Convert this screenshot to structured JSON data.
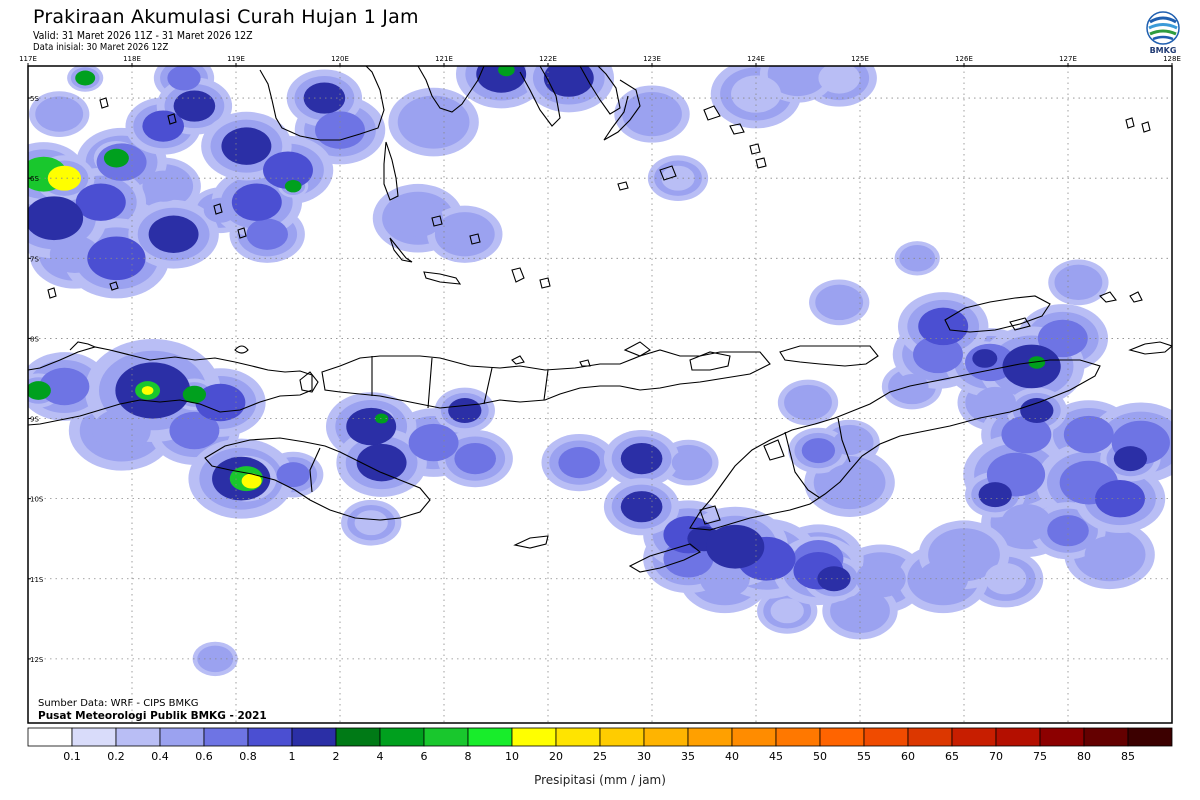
{
  "header": {
    "title": "Prakiraan Akumulasi Curah Hujan 1 Jam",
    "valid": "Valid: 31 Maret 2026 11Z -  31 Maret 2026 12Z",
    "init": "Data inisial: 30 Maret 2026 12Z"
  },
  "logo": {
    "text": "BMKG",
    "icon": "bmkg-logo-icon"
  },
  "map": {
    "lon_range": [
      117,
      128
    ],
    "lat_range": [
      -12.8,
      -4.6
    ],
    "lon_ticks": [
      "117E",
      "118E",
      "119E",
      "120E",
      "121E",
      "122E",
      "123E",
      "124E",
      "125E",
      "126E",
      "127E",
      "128E"
    ],
    "lat_ticks": [
      "5S",
      "6S",
      "7S",
      "8S",
      "9S",
      "10S",
      "11S",
      "12S"
    ],
    "grid": true
  },
  "credits": {
    "source": "Sumber Data: WRF - CIPS BMKG",
    "organization": "Pusat Meteorologi Publik BMKG - 2021"
  },
  "colorbar": {
    "labels": [
      "0.1",
      "0.2",
      "0.4",
      "0.6",
      "0.8",
      "1",
      "2",
      "4",
      "6",
      "8",
      "10",
      "20",
      "25",
      "30",
      "35",
      "40",
      "45",
      "50",
      "55",
      "60",
      "65",
      "70",
      "75",
      "80",
      "85"
    ],
    "colors": [
      "#ffffff",
      "#d9dcfa",
      "#b9bef5",
      "#9ba2f0",
      "#6e74e4",
      "#4b4fd2",
      "#2b2fa6",
      "#007a16",
      "#00a01e",
      "#19c72d",
      "#18ed2b",
      "#ffff00",
      "#ffe400",
      "#ffcc00",
      "#ffb400",
      "#ffa000",
      "#ff8c00",
      "#ff7800",
      "#ff6400",
      "#f04b00",
      "#dc3700",
      "#c81e00",
      "#b40f00",
      "#8c0000",
      "#640000",
      "#3c0000"
    ],
    "xlabel": "Presipitasi (mm / jam)"
  },
  "rain_cells": [
    {
      "lon": 117.15,
      "lat": -5.95,
      "r": 0.28,
      "mm": 6
    },
    {
      "lon": 117.35,
      "lat": -6.0,
      "r": 0.2,
      "mm": 10
    },
    {
      "lon": 117.25,
      "lat": -6.5,
      "r": 0.35,
      "mm": 1
    },
    {
      "lon": 117.7,
      "lat": -6.3,
      "r": 0.3,
      "mm": 0.8
    },
    {
      "lon": 117.9,
      "lat": -5.8,
      "r": 0.3,
      "mm": 0.6
    },
    {
      "lon": 117.85,
      "lat": -5.75,
      "r": 0.15,
      "mm": 4
    },
    {
      "lon": 118.3,
      "lat": -5.35,
      "r": 0.25,
      "mm": 0.8
    },
    {
      "lon": 118.6,
      "lat": -5.1,
      "r": 0.25,
      "mm": 1
    },
    {
      "lon": 118.5,
      "lat": -4.75,
      "r": 0.2,
      "mm": 0.6
    },
    {
      "lon": 117.55,
      "lat": -4.75,
      "r": 0.12,
      "mm": 4
    },
    {
      "lon": 117.85,
      "lat": -7.0,
      "r": 0.35,
      "mm": 0.8
    },
    {
      "lon": 117.45,
      "lat": -6.95,
      "r": 0.3,
      "mm": 0.4
    },
    {
      "lon": 118.4,
      "lat": -6.7,
      "r": 0.3,
      "mm": 1
    },
    {
      "lon": 119.1,
      "lat": -5.6,
      "r": 0.3,
      "mm": 1
    },
    {
      "lon": 119.5,
      "lat": -5.9,
      "r": 0.3,
      "mm": 0.8
    },
    {
      "lon": 119.55,
      "lat": -6.1,
      "r": 0.1,
      "mm": 4
    },
    {
      "lon": 119.3,
      "lat": -6.7,
      "r": 0.25,
      "mm": 0.6
    },
    {
      "lon": 119.85,
      "lat": -5.0,
      "r": 0.25,
      "mm": 1
    },
    {
      "lon": 120.0,
      "lat": -5.4,
      "r": 0.3,
      "mm": 0.6
    },
    {
      "lon": 120.9,
      "lat": -5.3,
      "r": 0.3,
      "mm": 0.4
    },
    {
      "lon": 120.75,
      "lat": -6.5,
      "r": 0.3,
      "mm": 0.4
    },
    {
      "lon": 121.2,
      "lat": -6.7,
      "r": 0.25,
      "mm": 0.4
    },
    {
      "lon": 121.55,
      "lat": -4.7,
      "r": 0.3,
      "mm": 1
    },
    {
      "lon": 121.6,
      "lat": -4.65,
      "r": 0.1,
      "mm": 4
    },
    {
      "lon": 122.2,
      "lat": -4.75,
      "r": 0.3,
      "mm": 1
    },
    {
      "lon": 123.0,
      "lat": -5.2,
      "r": 0.25,
      "mm": 0.4
    },
    {
      "lon": 123.25,
      "lat": -6.0,
      "r": 0.2,
      "mm": 0.2
    },
    {
      "lon": 124.0,
      "lat": -4.95,
      "r": 0.3,
      "mm": 0.2
    },
    {
      "lon": 124.4,
      "lat": -4.7,
      "r": 0.25,
      "mm": 0.4
    },
    {
      "lon": 124.8,
      "lat": -4.75,
      "r": 0.25,
      "mm": 0.2
    },
    {
      "lon": 117.1,
      "lat": -8.65,
      "r": 0.15,
      "mm": 4
    },
    {
      "lon": 117.35,
      "lat": -8.6,
      "r": 0.3,
      "mm": 0.6
    },
    {
      "lon": 118.2,
      "lat": -8.65,
      "r": 0.45,
      "mm": 1
    },
    {
      "lon": 118.15,
      "lat": -8.65,
      "r": 0.15,
      "mm": 6
    },
    {
      "lon": 118.15,
      "lat": -8.65,
      "r": 0.07,
      "mm": 10
    },
    {
      "lon": 118.6,
      "lat": -8.7,
      "r": 0.14,
      "mm": 4
    },
    {
      "lon": 118.85,
      "lat": -8.8,
      "r": 0.3,
      "mm": 0.8
    },
    {
      "lon": 117.9,
      "lat": -9.15,
      "r": 0.35,
      "mm": 0.4
    },
    {
      "lon": 118.6,
      "lat": -9.15,
      "r": 0.3,
      "mm": 0.6
    },
    {
      "lon": 119.05,
      "lat": -9.75,
      "r": 0.35,
      "mm": 1
    },
    {
      "lon": 119.1,
      "lat": -9.75,
      "r": 0.2,
      "mm": 6
    },
    {
      "lon": 119.15,
      "lat": -9.78,
      "r": 0.12,
      "mm": 10
    },
    {
      "lon": 119.55,
      "lat": -9.7,
      "r": 0.2,
      "mm": 0.6
    },
    {
      "lon": 120.3,
      "lat": -9.1,
      "r": 0.3,
      "mm": 1
    },
    {
      "lon": 120.4,
      "lat": -9.0,
      "r": 0.08,
      "mm": 4
    },
    {
      "lon": 120.4,
      "lat": -9.55,
      "r": 0.3,
      "mm": 1
    },
    {
      "lon": 120.9,
      "lat": -9.3,
      "r": 0.3,
      "mm": 0.6
    },
    {
      "lon": 121.2,
      "lat": -8.9,
      "r": 0.2,
      "mm": 1
    },
    {
      "lon": 121.3,
      "lat": -9.5,
      "r": 0.25,
      "mm": 0.6
    },
    {
      "lon": 120.3,
      "lat": -10.3,
      "r": 0.2,
      "mm": 0.2
    },
    {
      "lon": 122.3,
      "lat": -9.55,
      "r": 0.25,
      "mm": 0.6
    },
    {
      "lon": 122.9,
      "lat": -9.5,
      "r": 0.25,
      "mm": 1
    },
    {
      "lon": 123.35,
      "lat": -9.55,
      "r": 0.2,
      "mm": 0.4
    },
    {
      "lon": 122.9,
      "lat": -10.1,
      "r": 0.25,
      "mm": 1
    },
    {
      "lon": 123.35,
      "lat": -10.45,
      "r": 0.3,
      "mm": 0.8
    },
    {
      "lon": 123.5,
      "lat": -10.5,
      "r": 0.2,
      "mm": 1
    },
    {
      "lon": 123.8,
      "lat": -10.6,
      "r": 0.35,
      "mm": 1
    },
    {
      "lon": 124.1,
      "lat": -10.75,
      "r": 0.35,
      "mm": 0.8
    },
    {
      "lon": 123.35,
      "lat": -10.75,
      "r": 0.3,
      "mm": 0.6
    },
    {
      "lon": 123.7,
      "lat": -11.0,
      "r": 0.3,
      "mm": 0.4
    },
    {
      "lon": 124.6,
      "lat": -10.75,
      "r": 0.3,
      "mm": 0.6
    },
    {
      "lon": 124.6,
      "lat": -10.9,
      "r": 0.3,
      "mm": 0.8
    },
    {
      "lon": 124.75,
      "lat": -11.0,
      "r": 0.2,
      "mm": 1
    },
    {
      "lon": 125.2,
      "lat": -11.0,
      "r": 0.3,
      "mm": 0.4
    },
    {
      "lon": 125.8,
      "lat": -11.0,
      "r": 0.3,
      "mm": 0.4
    },
    {
      "lon": 124.3,
      "lat": -11.4,
      "r": 0.2,
      "mm": 0.2
    },
    {
      "lon": 125.0,
      "lat": -11.4,
      "r": 0.25,
      "mm": 0.4
    },
    {
      "lon": 124.9,
      "lat": -9.3,
      "r": 0.2,
      "mm": 0.4
    },
    {
      "lon": 124.6,
      "lat": -9.4,
      "r": 0.2,
      "mm": 0.6
    },
    {
      "lon": 124.9,
      "lat": -9.8,
      "r": 0.3,
      "mm": 0.4
    },
    {
      "lon": 125.5,
      "lat": -8.6,
      "r": 0.2,
      "mm": 0.4
    },
    {
      "lon": 125.55,
      "lat": -7.0,
      "r": 0.15,
      "mm": 0.4
    },
    {
      "lon": 124.8,
      "lat": -7.55,
      "r": 0.2,
      "mm": 0.4
    },
    {
      "lon": 124.5,
      "lat": -8.8,
      "r": 0.2,
      "mm": 0.4
    },
    {
      "lon": 125.8,
      "lat": -7.85,
      "r": 0.3,
      "mm": 0.8
    },
    {
      "lon": 125.75,
      "lat": -8.2,
      "r": 0.3,
      "mm": 0.6
    },
    {
      "lon": 126.25,
      "lat": -8.3,
      "r": 0.3,
      "mm": 0.6
    },
    {
      "lon": 126.2,
      "lat": -8.25,
      "r": 0.15,
      "mm": 1
    },
    {
      "lon": 126.65,
      "lat": -8.35,
      "r": 0.35,
      "mm": 1
    },
    {
      "lon": 126.7,
      "lat": -8.3,
      "r": 0.1,
      "mm": 4
    },
    {
      "lon": 126.95,
      "lat": -8.0,
      "r": 0.3,
      "mm": 0.6
    },
    {
      "lon": 127.1,
      "lat": -7.3,
      "r": 0.2,
      "mm": 0.4
    },
    {
      "lon": 126.3,
      "lat": -8.8,
      "r": 0.25,
      "mm": 0.4
    },
    {
      "lon": 126.6,
      "lat": -9.2,
      "r": 0.3,
      "mm": 0.6
    },
    {
      "lon": 126.7,
      "lat": -8.9,
      "r": 0.2,
      "mm": 1
    },
    {
      "lon": 127.2,
      "lat": -9.2,
      "r": 0.3,
      "mm": 0.6
    },
    {
      "lon": 127.7,
      "lat": -9.3,
      "r": 0.35,
      "mm": 0.6
    },
    {
      "lon": 127.6,
      "lat": -9.5,
      "r": 0.2,
      "mm": 1
    },
    {
      "lon": 126.5,
      "lat": -9.7,
      "r": 0.35,
      "mm": 0.6
    },
    {
      "lon": 126.3,
      "lat": -9.95,
      "r": 0.2,
      "mm": 1
    },
    {
      "lon": 127.2,
      "lat": -9.8,
      "r": 0.35,
      "mm": 0.6
    },
    {
      "lon": 127.5,
      "lat": -10.0,
      "r": 0.3,
      "mm": 0.8
    },
    {
      "lon": 126.6,
      "lat": -10.3,
      "r": 0.3,
      "mm": 0.4
    },
    {
      "lon": 127.0,
      "lat": -10.4,
      "r": 0.25,
      "mm": 0.6
    },
    {
      "lon": 126.0,
      "lat": -10.7,
      "r": 0.3,
      "mm": 0.4
    },
    {
      "lon": 127.4,
      "lat": -10.7,
      "r": 0.3,
      "mm": 0.4
    },
    {
      "lon": 126.4,
      "lat": -11.0,
      "r": 0.25,
      "mm": 0.2
    },
    {
      "lon": 119.2,
      "lat": -6.3,
      "r": 0.3,
      "mm": 0.8
    },
    {
      "lon": 118.85,
      "lat": -6.4,
      "r": 0.2,
      "mm": 0.4
    },
    {
      "lon": 118.3,
      "lat": -6.1,
      "r": 0.25,
      "mm": 0.4
    },
    {
      "lon": 117.3,
      "lat": -5.2,
      "r": 0.2,
      "mm": 0.4
    },
    {
      "lon": 118.8,
      "lat": -12.0,
      "r": 0.15,
      "mm": 0.4
    }
  ]
}
